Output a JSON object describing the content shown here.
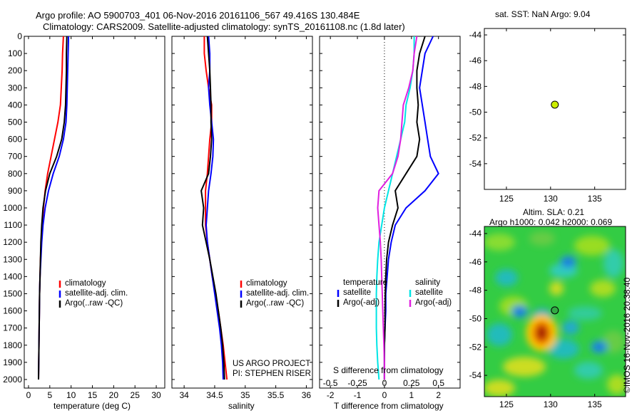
{
  "header": {
    "line1": "Argo profile: AO 5900703_401 06-Nov-2016 20161106_567 49.416S 130.484E",
    "line2": "Climatology: CARS2009. Satellite-adjusted climatology: synTS_20161108.nc (1.8d later)"
  },
  "colors": {
    "climatology": "#ff0000",
    "satellite": "#0000ff",
    "argo": "#000000",
    "sat_salinity": "#00e5e5",
    "argo_salinity": "#e020e0",
    "marker": "#ccee00"
  },
  "credit": {
    "line1": "US ARGO PROJECT",
    "line2": "PI: STEPHEN RISER"
  },
  "watermark": "©IMOS 16-Nov-2016 20:38:40",
  "chart_data": [
    {
      "type": "line",
      "xlabel": "temperature (deg C)",
      "xlim": [
        -1,
        32
      ],
      "ylim": [
        2050,
        0
      ],
      "xticks": [
        0,
        5,
        10,
        15,
        20,
        25,
        30
      ],
      "yticks": [
        0,
        100,
        200,
        300,
        400,
        500,
        600,
        700,
        800,
        900,
        1000,
        1100,
        1200,
        1300,
        1400,
        1500,
        1600,
        1700,
        1800,
        1900,
        2000
      ],
      "legend": [
        "climatology",
        "satellite-adj. clim.",
        "Argo(..raw -QC)"
      ],
      "legend_position": "middle-right",
      "series": [
        {
          "name": "climatology",
          "color": "#ff0000",
          "x": [
            8.2,
            8.0,
            7.9,
            7.7,
            7.5,
            6.9,
            6.1,
            5.3,
            4.5,
            3.9,
            3.5,
            3.2,
            3.0,
            2.8,
            2.7,
            2.6,
            2.55,
            2.5,
            2.45,
            2.4,
            2.35
          ],
          "y": [
            0,
            100,
            200,
            300,
            400,
            500,
            600,
            700,
            800,
            900,
            1000,
            1100,
            1200,
            1300,
            1400,
            1500,
            1600,
            1700,
            1800,
            1900,
            2000
          ]
        },
        {
          "name": "satellite-adj. clim.",
          "color": "#0000ff",
          "x": [
            9.4,
            9.3,
            9.2,
            9.1,
            9.0,
            8.8,
            8.2,
            7.2,
            5.8,
            4.7,
            3.9,
            3.4,
            3.1,
            2.9,
            2.7,
            2.6,
            2.55,
            2.5,
            2.45,
            2.4,
            2.35
          ],
          "y": [
            0,
            100,
            200,
            300,
            400,
            500,
            600,
            700,
            800,
            900,
            1000,
            1100,
            1200,
            1300,
            1400,
            1500,
            1600,
            1700,
            1800,
            1900,
            2000
          ]
        },
        {
          "name": "Argo(..raw -QC)",
          "color": "#000000",
          "x": [
            9.0,
            8.9,
            8.9,
            8.8,
            8.7,
            8.4,
            7.8,
            6.6,
            5.0,
            4.0,
            3.4,
            3.1,
            2.9,
            2.8,
            2.7,
            2.6,
            2.55,
            2.5,
            2.45,
            2.4,
            2.35
          ],
          "y": [
            0,
            100,
            200,
            300,
            400,
            500,
            600,
            700,
            800,
            900,
            1000,
            1100,
            1200,
            1300,
            1400,
            1500,
            1600,
            1700,
            1800,
            1900,
            2000
          ]
        }
      ]
    },
    {
      "type": "line",
      "xlabel": "salinity",
      "xlim": [
        33.8,
        36.1
      ],
      "ylim": [
        2050,
        0
      ],
      "xticks": [
        34,
        34.5,
        35,
        35.5,
        36
      ],
      "xticklabels": [
        "34",
        "34.5",
        "35",
        "35.5",
        "36"
      ],
      "legend": [
        "climatology",
        "satellite-adj. clim.",
        "Argo(..raw -QC)"
      ],
      "legend_position": "middle-right",
      "series": [
        {
          "name": "climatology",
          "color": "#ff0000",
          "x": [
            34.33,
            34.33,
            34.36,
            34.4,
            34.45,
            34.45,
            34.42,
            34.4,
            34.38,
            34.35,
            34.35,
            34.35,
            34.38,
            34.42,
            34.46,
            34.51,
            34.56,
            34.6,
            34.64,
            34.67,
            34.7
          ],
          "y": [
            0,
            100,
            200,
            300,
            400,
            500,
            600,
            700,
            800,
            900,
            1000,
            1100,
            1200,
            1300,
            1400,
            1500,
            1600,
            1700,
            1800,
            1900,
            2000
          ]
        },
        {
          "name": "satellite-adj. clim.",
          "color": "#0000ff",
          "x": [
            34.4,
            34.42,
            34.42,
            34.4,
            34.42,
            34.45,
            34.48,
            34.47,
            34.44,
            34.4,
            34.38,
            34.36,
            34.38,
            34.42,
            34.46,
            34.5,
            34.54,
            34.58,
            34.61,
            34.63,
            34.64
          ],
          "y": [
            0,
            100,
            200,
            300,
            400,
            500,
            600,
            700,
            800,
            900,
            1000,
            1100,
            1200,
            1300,
            1400,
            1500,
            1600,
            1700,
            1800,
            1900,
            2000
          ]
        },
        {
          "name": "Argo(..raw -QC)",
          "color": "#000000",
          "x": [
            34.38,
            34.4,
            34.42,
            34.43,
            34.44,
            34.44,
            34.45,
            34.43,
            34.4,
            34.28,
            34.32,
            34.3,
            34.36,
            34.42,
            34.47,
            34.52,
            34.56,
            34.6,
            34.63,
            34.65,
            34.66
          ],
          "y": [
            0,
            100,
            200,
            300,
            400,
            500,
            600,
            700,
            800,
            900,
            1000,
            1100,
            1200,
            1300,
            1400,
            1500,
            1600,
            1700,
            1800,
            1900,
            2000
          ]
        }
      ]
    },
    {
      "type": "line",
      "xlabel": "T difference from climatology",
      "xlabel_top": "S difference from climatology",
      "xlim": [
        -2.4,
        2.8
      ],
      "ylim": [
        2050,
        0
      ],
      "xticks": [
        -2,
        -1,
        0,
        1,
        2
      ],
      "xticks_top": [
        -0.5,
        -0.25,
        0,
        0.25,
        0.5
      ],
      "zero_line": "dotted",
      "legend": [
        "temperature",
        "satellite",
        "Argo(-adj)",
        "salinity",
        "satellite",
        "Argo(-adj)"
      ],
      "legend_position": "bottom",
      "series": [
        {
          "name": "satellite",
          "color": "#0000ff",
          "x": [
            1.8,
            1.5,
            1.4,
            1.3,
            1.4,
            1.5,
            1.6,
            1.7,
            2.0,
            1.5,
            0.8,
            0.4,
            0.25,
            0.15,
            0.1,
            0.05,
            0.05,
            0.02,
            0.0,
            0.0,
            0.0
          ],
          "y": [
            0,
            100,
            200,
            300,
            400,
            500,
            600,
            700,
            800,
            900,
            1000,
            1100,
            1200,
            1300,
            1400,
            1500,
            1600,
            1700,
            1800,
            1900,
            2000
          ]
        },
        {
          "name": "Argo(-adj)",
          "color": "#000000",
          "x": [
            1.5,
            1.3,
            1.2,
            1.2,
            1.25,
            1.2,
            1.3,
            1.2,
            0.8,
            0.4,
            0.5,
            0.3,
            0.15,
            0.08,
            0.05,
            0.03,
            0.02,
            0.02,
            0.0,
            0.0,
            0.0
          ],
          "y": [
            0,
            100,
            200,
            300,
            400,
            500,
            600,
            700,
            800,
            900,
            1000,
            1100,
            1200,
            1300,
            1400,
            1500,
            1600,
            1700,
            1800,
            1900,
            2000
          ]
        },
        {
          "name": "satellite",
          "color": "#00e5e5",
          "x": [
            1.1,
            1.1,
            1.05,
            0.95,
            0.8,
            0.75,
            0.6,
            0.45,
            0.3,
            0.15,
            0.0,
            -0.1,
            -0.2,
            -0.25,
            -0.28,
            -0.3,
            -0.3,
            -0.3,
            -0.28,
            -0.25,
            -0.2
          ],
          "y": [
            0,
            100,
            200,
            300,
            400,
            500,
            600,
            700,
            800,
            900,
            1000,
            1100,
            1200,
            1300,
            1400,
            1500,
            1600,
            1700,
            1800,
            1900,
            2000
          ]
        },
        {
          "name": "Argo(-adj)",
          "color": "#e020e0",
          "x": [
            1.2,
            1.1,
            1.05,
            0.9,
            0.7,
            0.65,
            0.6,
            0.5,
            0.3,
            -0.2,
            -0.25,
            -0.2,
            -0.15,
            -0.12,
            -0.1,
            -0.08,
            -0.06,
            -0.04,
            -0.02,
            0.0,
            0.0
          ],
          "y": [
            0,
            100,
            200,
            300,
            400,
            500,
            600,
            700,
            800,
            900,
            1000,
            1100,
            1200,
            1300,
            1400,
            1500,
            1600,
            1700,
            1800,
            1900,
            2000
          ]
        }
      ]
    },
    {
      "type": "scatter",
      "title": "sat. SST: NaN Argo: 9.04",
      "xlim": [
        122.5,
        138.5
      ],
      "ylim": [
        -56,
        -43.5
      ],
      "xticks": [
        125,
        130,
        135
      ],
      "yticks": [
        -44,
        -46,
        -48,
        -50,
        -52,
        -54
      ],
      "points": [
        {
          "x": 130.484,
          "y": -49.416
        }
      ]
    },
    {
      "type": "heatmap",
      "title_line1": "Altim. SLA: 0.21",
      "title_line2": "Argo h1000: 0.042 h2000: 0.069",
      "xlim": [
        122.5,
        138.5
      ],
      "ylim": [
        -55.5,
        -43.5
      ],
      "xticks": [
        125,
        130,
        135
      ],
      "yticks": [
        -44,
        -46,
        -48,
        -50,
        -52,
        -54
      ],
      "points": [
        {
          "x": 130.484,
          "y": -49.416
        }
      ],
      "features": [
        {
          "x": 129.0,
          "y": -51.0,
          "value": 1.0
        },
        {
          "x": 126.5,
          "y": -49.5,
          "value": -0.5
        },
        {
          "x": 135.5,
          "y": -52.0,
          "value": -0.4
        },
        {
          "x": 132.0,
          "y": -46.0,
          "value": -0.3
        }
      ]
    }
  ]
}
